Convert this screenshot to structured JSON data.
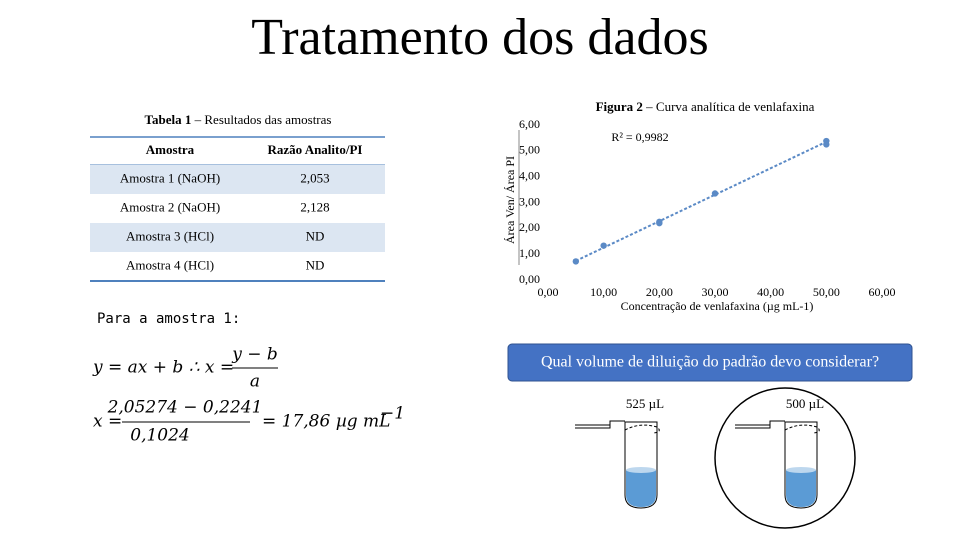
{
  "title": "Tratamento dos dados",
  "table": {
    "caption_label": "Tabela 1",
    "caption": "– Resultados das amostras",
    "header": [
      "Amostra",
      "Razão Analito/PI"
    ],
    "rows": [
      [
        "Amostra 1 (NaOH)",
        "2,053"
      ],
      [
        "Amostra 2 (NaOH)",
        "2,128"
      ],
      [
        "Amostra 3 (HCl)",
        "ND"
      ],
      [
        "Amostra 4 (HCl)",
        "ND"
      ]
    ]
  },
  "chart_data": {
    "type": "scatter",
    "title_label": "Figura 2",
    "title": "– Curva analítica de venlafaxina",
    "x_label": "Concentração de venlafaxina (µg mL-1)",
    "y_label": "Área Ven/ Área PI",
    "annotation": "R² = 0,9982",
    "x": [
      5,
      10,
      20,
      20,
      30,
      50,
      50
    ],
    "values": [
      0.72,
      1.33,
      2.2,
      2.25,
      3.35,
      5.25,
      5.38
    ],
    "color": "#5b8ac6",
    "trendline": {
      "x": [
        5,
        50
      ],
      "y": [
        0.74,
        5.35
      ]
    },
    "xlim": [
      0,
      60
    ],
    "ylim": [
      0,
      6
    ],
    "xticks": [
      {
        "value": 0,
        "label": "0,00"
      },
      {
        "value": 10,
        "label": "10,00"
      },
      {
        "value": 20,
        "label": "20,00"
      },
      {
        "value": 30,
        "label": "30,00"
      },
      {
        "value": 40,
        "label": "40,00"
      },
      {
        "value": 50,
        "label": "50,00"
      },
      {
        "value": 60,
        "label": "60,00"
      }
    ],
    "yticks": [
      {
        "value": 0,
        "label": "0,00"
      },
      {
        "value": 1,
        "label": "1,00"
      },
      {
        "value": 2,
        "label": "2,00"
      },
      {
        "value": 3,
        "label": "3,00"
      },
      {
        "value": 4,
        "label": "4,00"
      },
      {
        "value": 5,
        "label": "5,00"
      },
      {
        "value": 6,
        "label": "6,00"
      }
    ]
  },
  "intro": "Para a amostra 1:",
  "equation1": {
    "lhs": "y = ax + b ∴ x =",
    "numerator": "y − b",
    "denominator": "a"
  },
  "equation2": {
    "lhs": "x =",
    "numerator": "2,05274 − 0,2241",
    "denominator": "0,1024",
    "rhs": "= 17,86 µg mL",
    "exponent": "−1"
  },
  "question": "Qual volume de diluição do padrão devo considerar?",
  "tubes": [
    "525 µL",
    "500 µL"
  ]
}
